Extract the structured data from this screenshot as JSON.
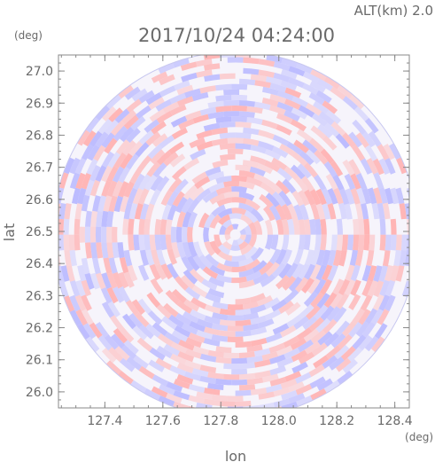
{
  "header": {
    "alt_text": "ALT(km) 2.0",
    "timestamp": "2017/10/24 04:24:00"
  },
  "chart_data": {
    "type": "heatmap",
    "title": "2017/10/24 04:24:00",
    "subtitle": "ALT(km) 2.0",
    "xlabel": "lon",
    "ylabel": "lat",
    "xunit": "(deg)",
    "yunit": "(deg)",
    "xlim": [
      127.24,
      128.45
    ],
    "ylim": [
      25.95,
      27.05
    ],
    "x_ticks": [
      127.4,
      127.6,
      127.8,
      128.0,
      128.2,
      128.4
    ],
    "x_tick_labels": [
      "127.4",
      "127.6",
      "127.8",
      "128.0",
      "128.2",
      "128.4"
    ],
    "y_ticks": [
      26.0,
      26.1,
      26.2,
      26.3,
      26.4,
      26.5,
      26.6,
      26.7,
      26.8,
      26.9,
      27.0
    ],
    "y_tick_labels": [
      "26.0",
      "26.1",
      "26.2",
      "26.3",
      "26.4",
      "26.5",
      "26.6",
      "26.7",
      "26.8",
      "26.9",
      "27.0"
    ],
    "coverage_center": {
      "lon": 127.85,
      "lat": 26.49
    },
    "coverage_radius_deg_lat": 0.57,
    "colors": {
      "positive": "#ffb0b0",
      "negative": "#b8b8ff",
      "axis": "#888888",
      "text": "#6a6a6a"
    }
  }
}
